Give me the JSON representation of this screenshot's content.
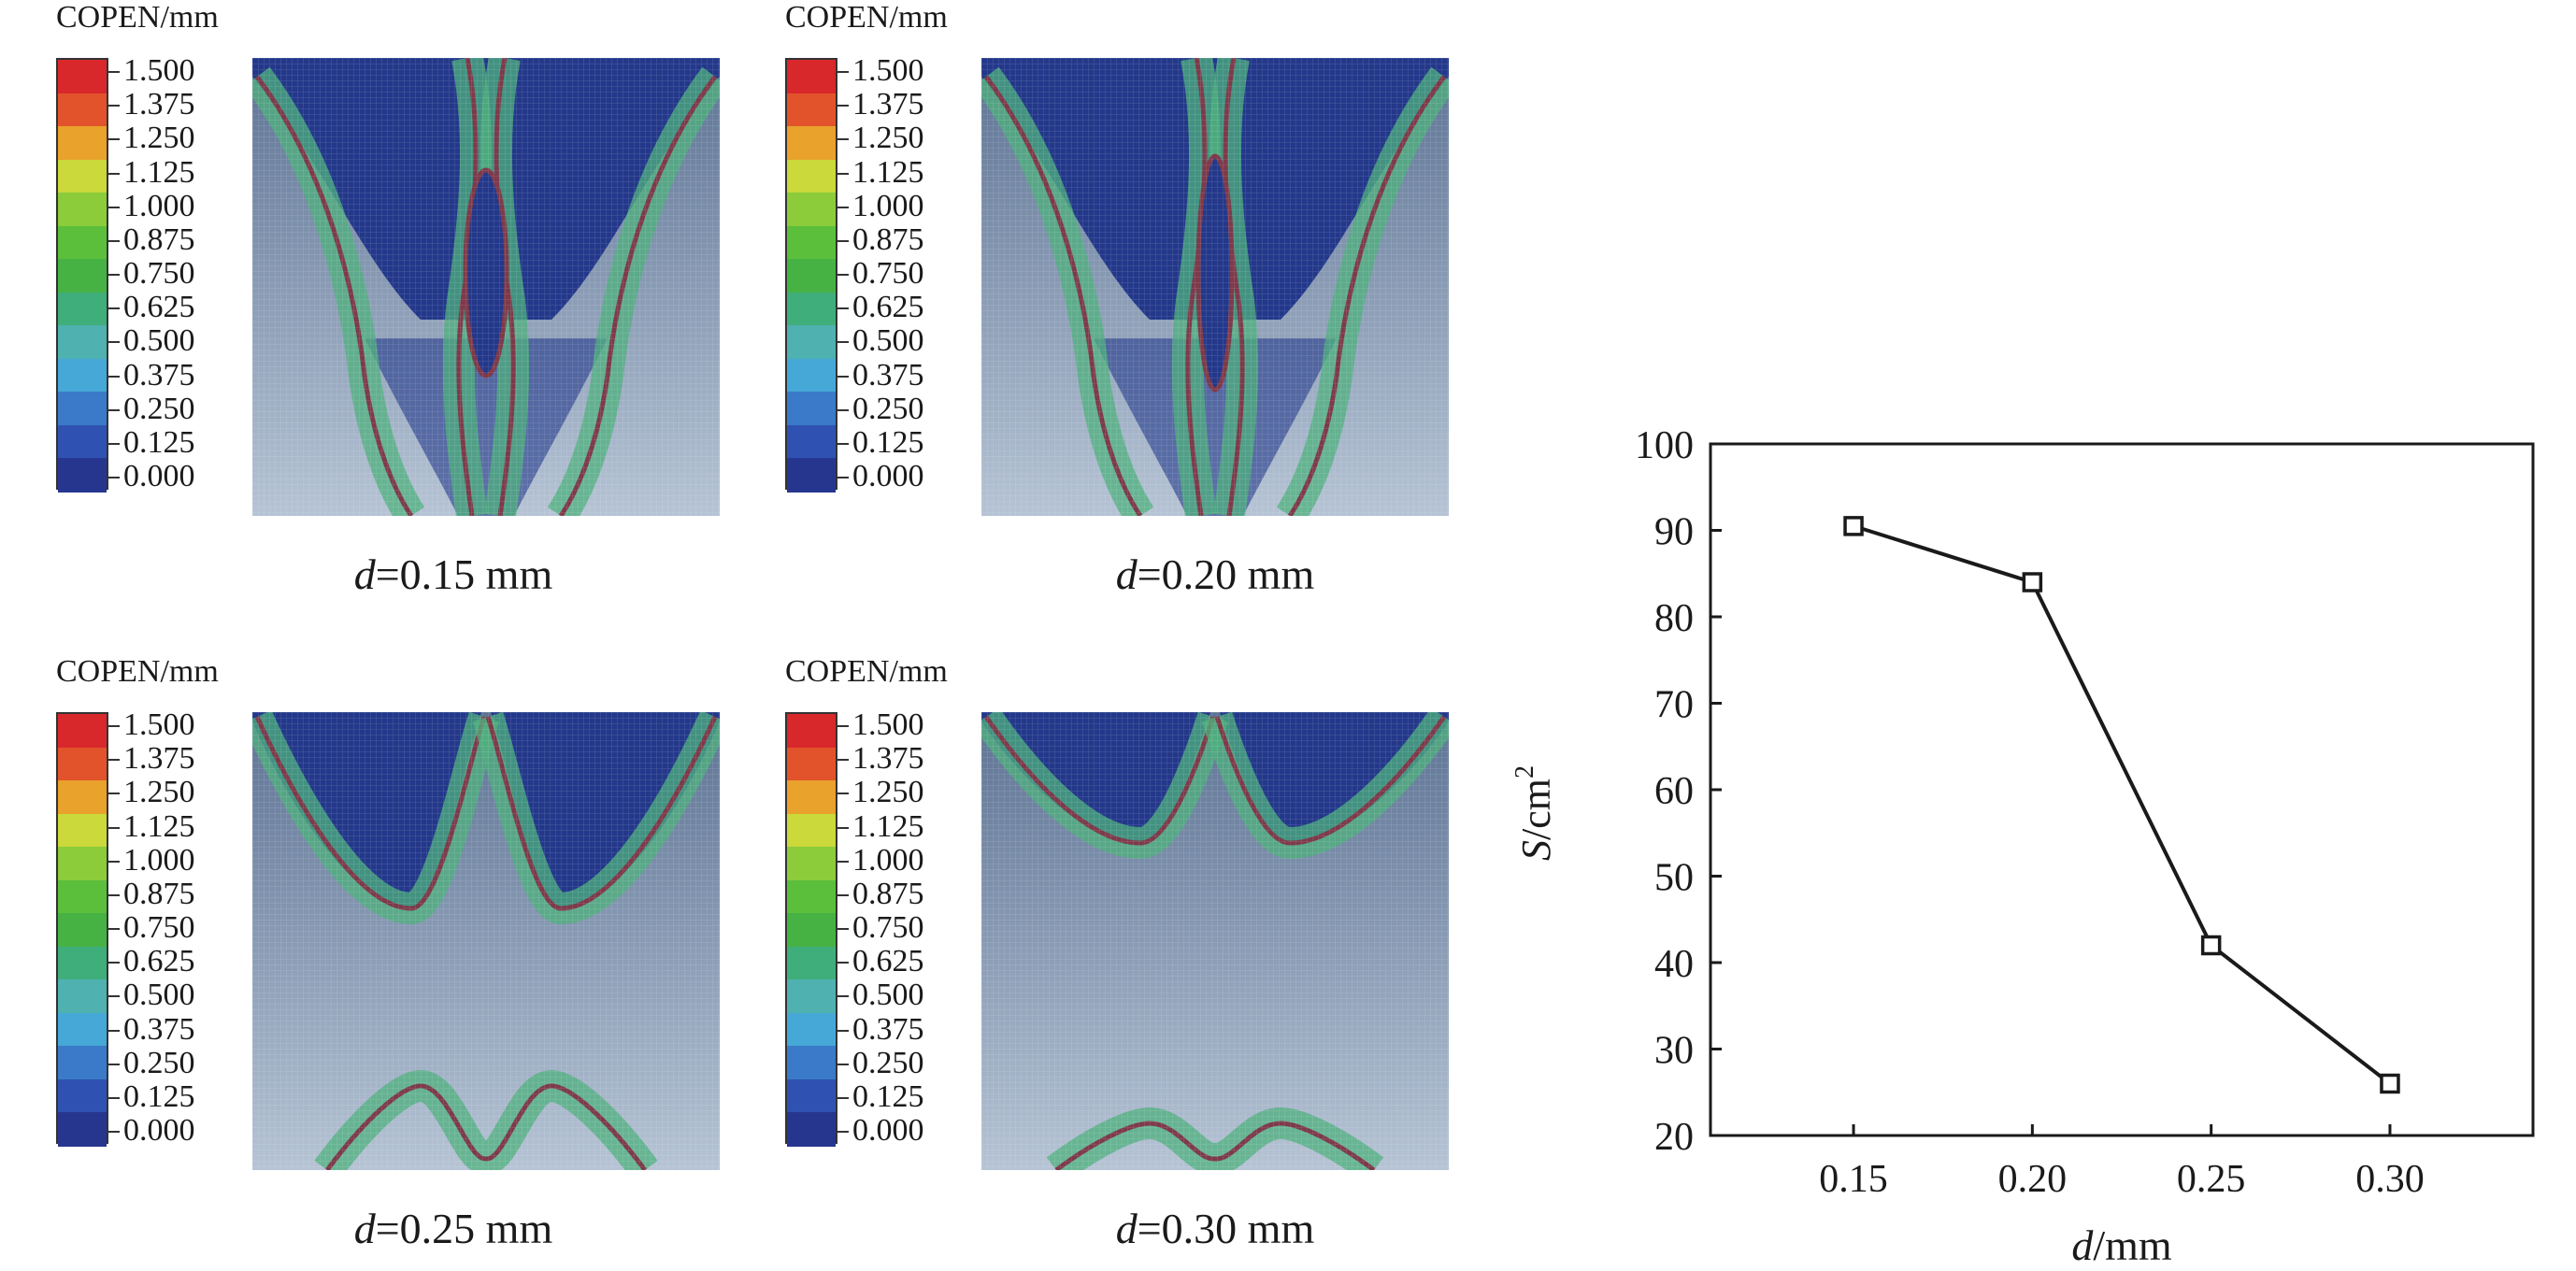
{
  "panels": [
    {
      "legend_title": "COPEN/mm",
      "caption_var": "d",
      "caption_rest": "=0.15 mm",
      "variant": 0
    },
    {
      "legend_title": "COPEN/mm",
      "caption_var": "d",
      "caption_rest": "=0.20 mm",
      "variant": 1
    },
    {
      "legend_title": "COPEN/mm",
      "caption_var": "d",
      "caption_rest": "=0.25 mm",
      "variant": 2
    },
    {
      "legend_title": "COPEN/mm",
      "caption_var": "d",
      "caption_rest": "=0.30 mm",
      "variant": 3
    }
  ],
  "legend": {
    "ticks": [
      "1.500",
      "1.375",
      "1.250",
      "1.125",
      "1.000",
      "0.875",
      "0.750",
      "0.625",
      "0.500",
      "0.375",
      "0.250",
      "0.125",
      "0.000"
    ],
    "colors": [
      "#d9282c",
      "#e2532c",
      "#e9a22b",
      "#cbd93a",
      "#8ccc3a",
      "#5cbf3c",
      "#47b244",
      "#3fae7a",
      "#4fb1b0",
      "#46a8d6",
      "#3a7ac8",
      "#2f52b2",
      "#26368f"
    ]
  },
  "contour_colors": {
    "background": "#5d7394",
    "deep": "#23388a",
    "band": "#4fb07e",
    "edge": "#7e3a4a",
    "base": "#b5c3d4"
  },
  "chart_data": {
    "type": "line",
    "x": [
      0.15,
      0.2,
      0.25,
      0.3
    ],
    "x_tick_labels": [
      "0.15",
      "0.20",
      "0.25",
      "0.30"
    ],
    "series": [
      {
        "values": [
          90.5,
          84,
          42,
          26
        ],
        "marker": "square",
        "color": "#1a1a1a"
      }
    ],
    "ylim": [
      20,
      100
    ],
    "y_ticks": [
      20,
      30,
      40,
      50,
      60,
      70,
      80,
      90,
      100
    ],
    "xlabel_var": "d",
    "xlabel_unit": "/mm",
    "ylabel_var": "S",
    "ylabel_unit": "/cm",
    "ylabel_sup": "2",
    "grid": false
  }
}
